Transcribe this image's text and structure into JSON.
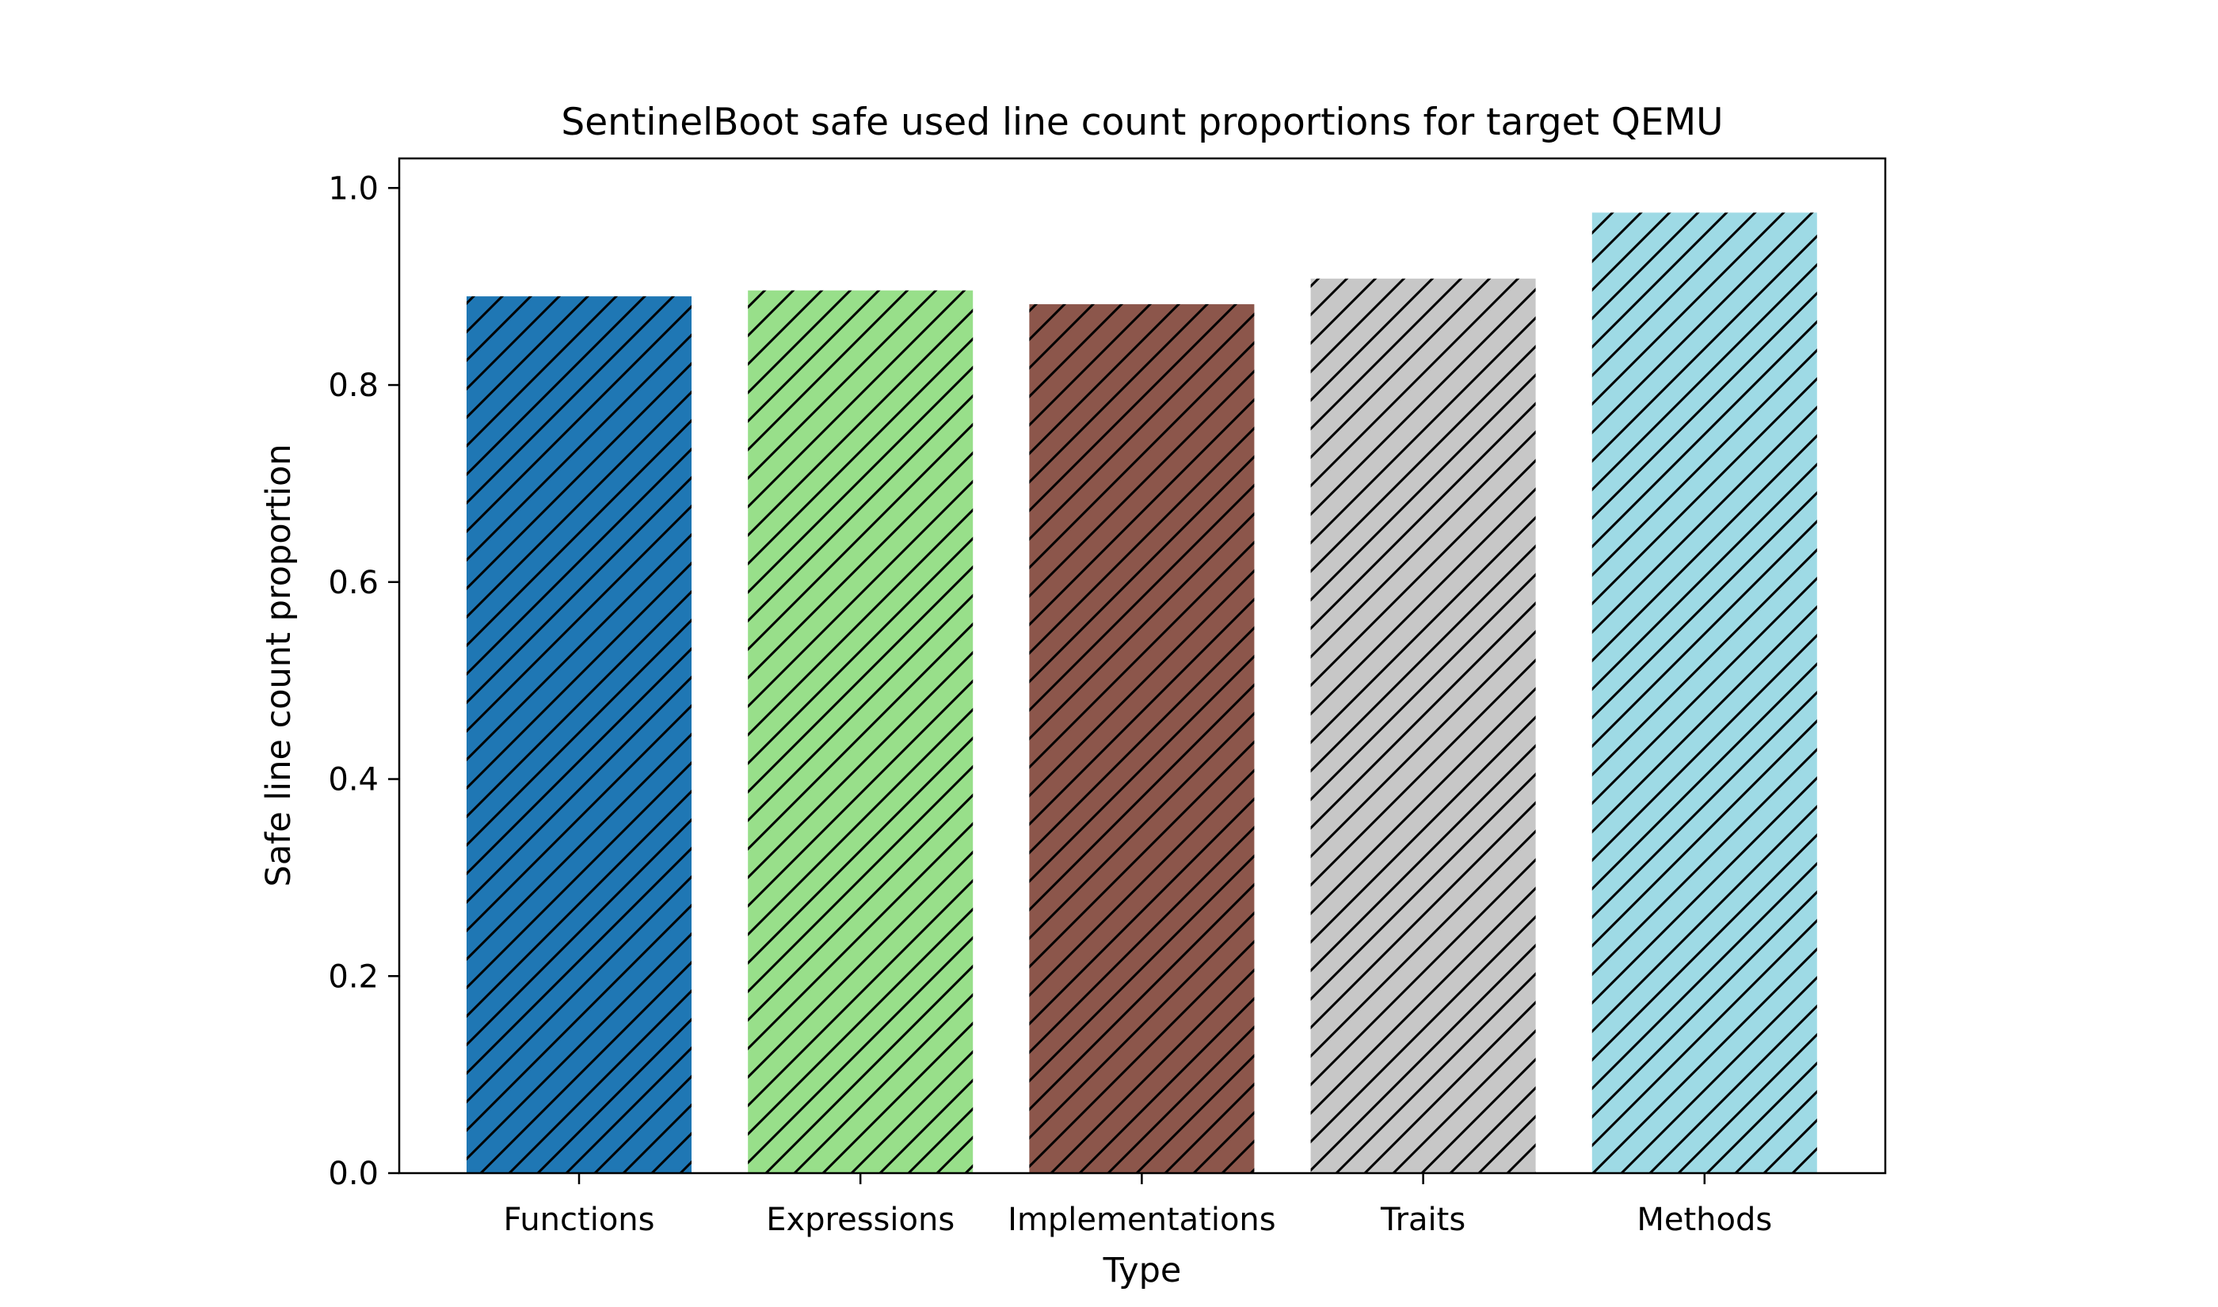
{
  "chart_data": {
    "type": "bar",
    "title": "SentinelBoot safe used line count proportions for target QEMU",
    "xlabel": "Type",
    "ylabel": "Safe line count proportion",
    "categories": [
      "Functions",
      "Expressions",
      "Implementations",
      "Traits",
      "Methods"
    ],
    "values": [
      0.89,
      0.896,
      0.882,
      0.908,
      0.975
    ],
    "colors": [
      "#1f77b4",
      "#98df8a",
      "#8c564b",
      "#c7c7c7",
      "#9edae5"
    ],
    "hatch": "diagonal",
    "ylim": [
      0.0,
      1.03
    ],
    "yticks": [
      "0.0",
      "0.2",
      "0.4",
      "0.6",
      "0.8",
      "1.0"
    ],
    "grid": false,
    "legend": "none"
  }
}
